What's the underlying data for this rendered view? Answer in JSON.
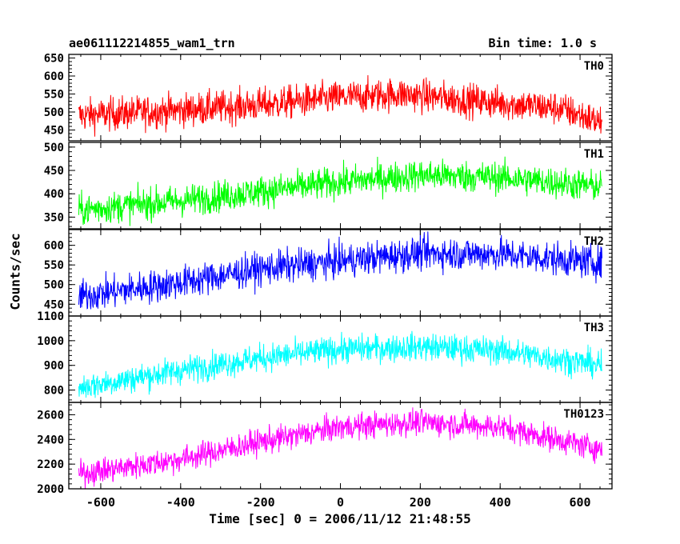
{
  "header": {
    "title": "ae061112214855_wam1_trn",
    "bin_time": "Bin time: 1.0 s"
  },
  "chart_data": {
    "type": "line",
    "xlabel": "Time [sec] 0 = 2006/11/12 21:48:55",
    "ylabel": "Counts/sec",
    "xlim": [
      -680,
      680
    ],
    "xticks": [
      -600,
      -400,
      -200,
      0,
      200,
      400,
      600
    ],
    "x_start": -655,
    "x_end": 655,
    "grid": false,
    "panels": [
      {
        "name": "TH0",
        "color": "#ff0000",
        "ylim": [
          420,
          660
        ],
        "yticks": [
          450,
          500,
          550,
          600,
          650
        ],
        "trend": {
          "x": [
            -655,
            -400,
            -200,
            0,
            150,
            400,
            550,
            655
          ],
          "y": [
            490,
            505,
            520,
            540,
            550,
            525,
            510,
            470
          ]
        },
        "noise": 33
      },
      {
        "name": "TH1",
        "color": "#00ff00",
        "ylim": [
          325,
          510
        ],
        "yticks": [
          350,
          400,
          450,
          500
        ],
        "trend": {
          "x": [
            -655,
            -400,
            -200,
            0,
            200,
            400,
            655
          ],
          "y": [
            365,
            385,
            405,
            425,
            440,
            435,
            415
          ]
        },
        "noise": 24
      },
      {
        "name": "TH2",
        "color": "#0000ff",
        "ylim": [
          420,
          640
        ],
        "yticks": [
          450,
          500,
          550,
          600
        ],
        "trend": {
          "x": [
            -655,
            -400,
            -200,
            0,
            200,
            400,
            655
          ],
          "y": [
            470,
            505,
            540,
            560,
            580,
            578,
            555
          ]
        },
        "noise": 30
      },
      {
        "name": "TH3",
        "color": "#00ffff",
        "ylim": [
          750,
          1100
        ],
        "yticks": [
          800,
          900,
          1000,
          1100
        ],
        "trend": {
          "x": [
            -655,
            -400,
            -200,
            0,
            200,
            400,
            655
          ],
          "y": [
            810,
            880,
            930,
            965,
            975,
            960,
            900
          ]
        },
        "noise": 40
      },
      {
        "name": "TH0123",
        "color": "#ff00ff",
        "ylim": [
          2000,
          2700
        ],
        "yticks": [
          2000,
          2200,
          2400,
          2600
        ],
        "trend": {
          "x": [
            -655,
            -400,
            -200,
            0,
            200,
            400,
            655
          ],
          "y": [
            2120,
            2240,
            2380,
            2500,
            2540,
            2500,
            2320
          ]
        },
        "noise": 75
      }
    ]
  }
}
